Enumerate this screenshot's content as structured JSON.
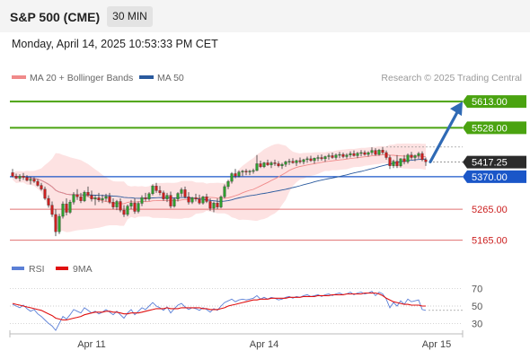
{
  "header": {
    "title": "S&P 500 (CME)",
    "interval": "30 MIN",
    "datetime": "Monday, April 14, 2025 10:53:33 PM CET"
  },
  "colors": {
    "candle_up": "#2e9e2e",
    "candle_down": "#cc1f1f",
    "bollinger_fill": "#fde2e2",
    "ma20": "#f08a8a",
    "ma50": "#2a5a9e",
    "target": "#4aa310",
    "pivot": "#1a56c8",
    "support": "#e07070",
    "arrow": "#2f6ab5",
    "rsi": "#5b7fd6",
    "rsi_ma": "#e01010"
  },
  "chart_data": [
    {
      "type": "candlestick",
      "legend": [
        {
          "name": "MA 20 + Bollinger Bands",
          "color": "#f08a8a"
        },
        {
          "name": "MA 50",
          "color": "#2a5a9e"
        }
      ],
      "watermark": "Research © 2025 Trading Central",
      "ylim": [
        5100,
        5680
      ],
      "x_ticks": [
        {
          "label": "Apr 11",
          "index": 20
        },
        {
          "label": "Apr 14",
          "index": 68
        },
        {
          "label": "Apr 15",
          "index": 116
        }
      ],
      "ohlc": [
        [
          5383,
          5395,
          5368,
          5372
        ],
        [
          5372,
          5380,
          5362,
          5365
        ],
        [
          5365,
          5378,
          5355,
          5372
        ],
        [
          5372,
          5382,
          5360,
          5368
        ],
        [
          5368,
          5375,
          5355,
          5358
        ],
        [
          5358,
          5370,
          5345,
          5362
        ],
        [
          5362,
          5368,
          5350,
          5355
        ],
        [
          5355,
          5362,
          5338,
          5342
        ],
        [
          5342,
          5350,
          5325,
          5330
        ],
        [
          5330,
          5338,
          5295,
          5300
        ],
        [
          5300,
          5310,
          5270,
          5278
        ],
        [
          5278,
          5290,
          5240,
          5248
        ],
        [
          5248,
          5265,
          5178,
          5192
        ],
        [
          5192,
          5250,
          5185,
          5242
        ],
        [
          5242,
          5290,
          5235,
          5282
        ],
        [
          5282,
          5300,
          5245,
          5255
        ],
        [
          5255,
          5295,
          5250,
          5288
        ],
        [
          5288,
          5320,
          5280,
          5312
        ],
        [
          5312,
          5330,
          5295,
          5305
        ],
        [
          5305,
          5318,
          5285,
          5292
        ],
        [
          5292,
          5325,
          5288,
          5320
        ],
        [
          5320,
          5338,
          5305,
          5310
        ],
        [
          5310,
          5325,
          5290,
          5298
        ],
        [
          5298,
          5310,
          5278,
          5302
        ],
        [
          5302,
          5318,
          5288,
          5295
        ],
        [
          5295,
          5312,
          5285,
          5300
        ],
        [
          5300,
          5315,
          5290,
          5306
        ],
        [
          5306,
          5318,
          5282,
          5288
        ],
        [
          5288,
          5300,
          5265,
          5272
        ],
        [
          5272,
          5295,
          5262,
          5290
        ],
        [
          5290,
          5300,
          5255,
          5262
        ],
        [
          5262,
          5278,
          5240,
          5248
        ],
        [
          5248,
          5280,
          5242,
          5275
        ],
        [
          5275,
          5295,
          5265,
          5285
        ],
        [
          5285,
          5300,
          5250,
          5258
        ],
        [
          5258,
          5290,
          5252,
          5284
        ],
        [
          5284,
          5310,
          5275,
          5302
        ],
        [
          5302,
          5318,
          5290,
          5298
        ],
        [
          5298,
          5320,
          5292,
          5315
        ],
        [
          5315,
          5345,
          5310,
          5340
        ],
        [
          5340,
          5350,
          5318,
          5325
        ],
        [
          5325,
          5340,
          5310,
          5318
        ],
        [
          5318,
          5325,
          5292,
          5298
        ],
        [
          5298,
          5318,
          5288,
          5310
        ],
        [
          5310,
          5322,
          5268,
          5275
        ],
        [
          5275,
          5302,
          5270,
          5298
        ],
        [
          5298,
          5320,
          5290,
          5316
        ],
        [
          5316,
          5335,
          5305,
          5328
        ],
        [
          5328,
          5338,
          5300,
          5305
        ],
        [
          5305,
          5320,
          5280,
          5288
        ],
        [
          5288,
          5305,
          5282,
          5302
        ],
        [
          5302,
          5315,
          5290,
          5298
        ],
        [
          5298,
          5312,
          5280,
          5285
        ],
        [
          5285,
          5308,
          5280,
          5305
        ],
        [
          5305,
          5315,
          5285,
          5290
        ],
        [
          5290,
          5300,
          5260,
          5268
        ],
        [
          5268,
          5290,
          5255,
          5285
        ],
        [
          5285,
          5300,
          5265,
          5272
        ],
        [
          5272,
          5310,
          5268,
          5305
        ],
        [
          5305,
          5345,
          5300,
          5338
        ],
        [
          5338,
          5360,
          5330,
          5355
        ],
        [
          5355,
          5385,
          5348,
          5380
        ],
        [
          5380,
          5395,
          5365,
          5372
        ],
        [
          5372,
          5390,
          5368,
          5385
        ],
        [
          5385,
          5392,
          5372,
          5388
        ],
        [
          5388,
          5395,
          5375,
          5385
        ],
        [
          5385,
          5392,
          5375,
          5388
        ],
        [
          5388,
          5396,
          5380,
          5390
        ],
        [
          5390,
          5440,
          5388,
          5412
        ],
        [
          5412,
          5422,
          5398,
          5402
        ],
        [
          5402,
          5418,
          5398,
          5415
        ],
        [
          5415,
          5425,
          5405,
          5408
        ],
        [
          5408,
          5420,
          5398,
          5415
        ],
        [
          5415,
          5425,
          5405,
          5412
        ],
        [
          5412,
          5420,
          5400,
          5405
        ],
        [
          5405,
          5415,
          5395,
          5410
        ],
        [
          5410,
          5422,
          5402,
          5418
        ],
        [
          5418,
          5428,
          5408,
          5420
        ],
        [
          5420,
          5430,
          5412,
          5415
        ],
        [
          5415,
          5425,
          5405,
          5422
        ],
        [
          5422,
          5432,
          5412,
          5418
        ],
        [
          5418,
          5428,
          5410,
          5425
        ],
        [
          5425,
          5435,
          5415,
          5428
        ],
        [
          5428,
          5438,
          5418,
          5422
        ],
        [
          5422,
          5432,
          5412,
          5430
        ],
        [
          5430,
          5440,
          5420,
          5432
        ],
        [
          5432,
          5442,
          5422,
          5428
        ],
        [
          5428,
          5438,
          5418,
          5435
        ],
        [
          5435,
          5445,
          5425,
          5438
        ],
        [
          5438,
          5448,
          5428,
          5432
        ],
        [
          5432,
          5445,
          5425,
          5440
        ],
        [
          5440,
          5450,
          5430,
          5442
        ],
        [
          5442,
          5448,
          5430,
          5435
        ],
        [
          5435,
          5446,
          5428,
          5440
        ],
        [
          5440,
          5452,
          5432,
          5445
        ],
        [
          5445,
          5455,
          5435,
          5438
        ],
        [
          5438,
          5450,
          5430,
          5446
        ],
        [
          5446,
          5456,
          5436,
          5448
        ],
        [
          5448,
          5455,
          5438,
          5442
        ],
        [
          5442,
          5452,
          5435,
          5448
        ],
        [
          5448,
          5465,
          5440,
          5455
        ],
        [
          5455,
          5462,
          5438,
          5442
        ],
        [
          5442,
          5460,
          5438,
          5456
        ],
        [
          5456,
          5466,
          5442,
          5448
        ],
        [
          5448,
          5455,
          5425,
          5432
        ],
        [
          5432,
          5440,
          5395,
          5405
        ],
        [
          5405,
          5425,
          5398,
          5420
        ],
        [
          5420,
          5440,
          5398,
          5405
        ],
        [
          5405,
          5430,
          5400,
          5428
        ],
        [
          5428,
          5440,
          5410,
          5418
        ],
        [
          5418,
          5445,
          5412,
          5440
        ],
        [
          5440,
          5450,
          5425,
          5432
        ],
        [
          5432,
          5442,
          5420,
          5438
        ],
        [
          5438,
          5450,
          5428,
          5445
        ],
        [
          5445,
          5452,
          5420,
          5425
        ],
        [
          5425,
          5432,
          5405,
          5418
        ]
      ],
      "levels": [
        {
          "value": 5613.0,
          "label": "5613.00",
          "style": "target"
        },
        {
          "value": 5528.0,
          "label": "5528.00",
          "style": "target"
        },
        {
          "value": 5417.25,
          "label": "5417.25",
          "style": "last"
        },
        {
          "value": 5370.0,
          "label": "5370.00",
          "style": "pivot"
        },
        {
          "value": 5265.0,
          "label": "5265.00",
          "style": "support"
        },
        {
          "value": 5165.0,
          "label": "5165.00",
          "style": "support"
        }
      ]
    },
    {
      "type": "line",
      "legend": [
        {
          "name": "RSI",
          "color": "#5b7fd6"
        },
        {
          "name": "9MA",
          "color": "#e01010"
        }
      ],
      "y_ticks": [
        "70",
        "50",
        "30"
      ],
      "ylim": [
        20,
        80
      ],
      "series": [
        {
          "name": "RSI",
          "values": [
            52,
            50,
            48,
            51,
            47,
            44,
            46,
            41,
            38,
            34,
            30,
            27,
            22,
            30,
            38,
            35,
            40,
            46,
            44,
            42,
            48,
            45,
            42,
            44,
            41,
            43,
            46,
            43,
            40,
            44,
            40,
            36,
            42,
            46,
            40,
            44,
            48,
            46,
            50,
            54,
            50,
            48,
            45,
            49,
            42,
            47,
            51,
            53,
            49,
            46,
            48,
            47,
            45,
            48,
            46,
            43,
            47,
            45,
            50,
            54,
            56,
            58,
            55,
            57,
            58,
            57,
            58,
            59,
            62,
            58,
            60,
            58,
            60,
            59,
            57,
            58,
            60,
            61,
            59,
            61,
            60,
            62,
            63,
            61,
            62,
            63,
            61,
            63,
            64,
            62,
            64,
            65,
            63,
            64,
            66,
            63,
            65,
            66,
            64,
            65,
            67,
            62,
            66,
            64,
            58,
            48,
            54,
            50,
            56,
            52,
            58,
            55,
            56,
            57,
            46,
            45
          ]
        },
        {
          "name": "9MA",
          "values": [
            53,
            52,
            51,
            50,
            49,
            48,
            47,
            46,
            45,
            43,
            41,
            39,
            36,
            35,
            34,
            34,
            35,
            36,
            37,
            38,
            40,
            41,
            42,
            43,
            43,
            43,
            44,
            44,
            43,
            43,
            42,
            41,
            41,
            42,
            42,
            42,
            43,
            44,
            45,
            46,
            47,
            47,
            47,
            48,
            47,
            47,
            47,
            48,
            48,
            48,
            48,
            48,
            48,
            47,
            47,
            46,
            46,
            46,
            47,
            48,
            50,
            51,
            52,
            53,
            54,
            55,
            56,
            57,
            57,
            58,
            58,
            58,
            59,
            59,
            59,
            59,
            59,
            60,
            60,
            60,
            60,
            61,
            61,
            61,
            61,
            62,
            62,
            62,
            62,
            63,
            63,
            63,
            63,
            64,
            64,
            64,
            64,
            64,
            65,
            65,
            65,
            65,
            64,
            62,
            59,
            57,
            55,
            54,
            53,
            52,
            52,
            51,
            51,
            51,
            50,
            50
          ]
        }
      ]
    }
  ]
}
